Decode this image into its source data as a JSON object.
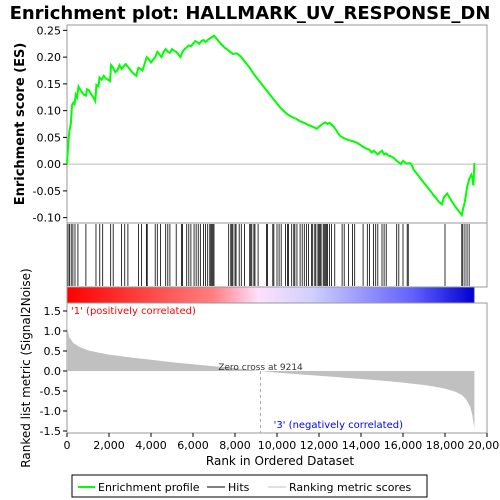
{
  "chart_data": {
    "type": "line",
    "title": "Enrichment plot: HALLMARK_UV_RESPONSE_DN",
    "es_panel": {
      "ylabel": "Enrichment score (ES)",
      "ylim": [
        -0.11,
        0.26
      ],
      "yticks": [
        -0.1,
        -0.05,
        0.0,
        0.05,
        0.1,
        0.15,
        0.2,
        0.25
      ],
      "ytick_labels": [
        "-0.10",
        "-0.05",
        "0.00",
        "0.05",
        "0.10",
        "0.15",
        "0.20",
        "0.25"
      ],
      "line_color": "#00ff00",
      "points": [
        [
          0,
          0.0
        ],
        [
          60,
          0.04
        ],
        [
          120,
          0.063
        ],
        [
          180,
          0.075
        ],
        [
          240,
          0.11
        ],
        [
          300,
          0.115
        ],
        [
          360,
          0.112
        ],
        [
          420,
          0.13
        ],
        [
          480,
          0.125
        ],
        [
          550,
          0.145
        ],
        [
          620,
          0.14
        ],
        [
          700,
          0.135
        ],
        [
          800,
          0.13
        ],
        [
          900,
          0.128
        ],
        [
          950,
          0.14
        ],
        [
          1050,
          0.138
        ],
        [
          1150,
          0.13
        ],
        [
          1250,
          0.125
        ],
        [
          1350,
          0.118
        ],
        [
          1400,
          0.148
        ],
        [
          1500,
          0.145
        ],
        [
          1550,
          0.162
        ],
        [
          1650,
          0.158
        ],
        [
          1750,
          0.165
        ],
        [
          1850,
          0.16
        ],
        [
          1950,
          0.158
        ],
        [
          2050,
          0.155
        ],
        [
          2100,
          0.185
        ],
        [
          2200,
          0.18
        ],
        [
          2300,
          0.172
        ],
        [
          2400,
          0.175
        ],
        [
          2500,
          0.185
        ],
        [
          2600,
          0.178
        ],
        [
          2700,
          0.183
        ],
        [
          2800,
          0.187
        ],
        [
          2900,
          0.182
        ],
        [
          3000,
          0.177
        ],
        [
          3100,
          0.172
        ],
        [
          3200,
          0.168
        ],
        [
          3300,
          0.165
        ],
        [
          3400,
          0.18
        ],
        [
          3500,
          0.178
        ],
        [
          3600,
          0.175
        ],
        [
          3700,
          0.188
        ],
        [
          3800,
          0.2
        ],
        [
          3900,
          0.196
        ],
        [
          4000,
          0.19
        ],
        [
          4100,
          0.195
        ],
        [
          4200,
          0.2
        ],
        [
          4300,
          0.21
        ],
        [
          4400,
          0.205
        ],
        [
          4500,
          0.2
        ],
        [
          4600,
          0.21
        ],
        [
          4700,
          0.215
        ],
        [
          4800,
          0.21
        ],
        [
          4900,
          0.208
        ],
        [
          5000,
          0.215
        ],
        [
          5100,
          0.212
        ],
        [
          5200,
          0.21
        ],
        [
          5300,
          0.205
        ],
        [
          5400,
          0.2
        ],
        [
          5500,
          0.21
        ],
        [
          5600,
          0.215
        ],
        [
          5700,
          0.218
        ],
        [
          5800,
          0.222
        ],
        [
          5900,
          0.22
        ],
        [
          6000,
          0.225
        ],
        [
          6100,
          0.23
        ],
        [
          6200,
          0.228
        ],
        [
          6300,
          0.225
        ],
        [
          6400,
          0.23
        ],
        [
          6500,
          0.232
        ],
        [
          6600,
          0.228
        ],
        [
          6700,
          0.232
        ],
        [
          6800,
          0.235
        ],
        [
          6900,
          0.237
        ],
        [
          7000,
          0.24
        ],
        [
          7050,
          0.238
        ],
        [
          7150,
          0.233
        ],
        [
          7300,
          0.226
        ],
        [
          7500,
          0.218
        ],
        [
          7700,
          0.212
        ],
        [
          7900,
          0.206
        ],
        [
          8100,
          0.207
        ],
        [
          8300,
          0.2
        ],
        [
          8500,
          0.19
        ],
        [
          8700,
          0.18
        ],
        [
          8900,
          0.168
        ],
        [
          9100,
          0.158
        ],
        [
          9300,
          0.148
        ],
        [
          9500,
          0.138
        ],
        [
          9700,
          0.128
        ],
        [
          9900,
          0.118
        ],
        [
          10100,
          0.108
        ],
        [
          10300,
          0.1
        ],
        [
          10500,
          0.093
        ],
        [
          10700,
          0.088
        ],
        [
          10900,
          0.085
        ],
        [
          11100,
          0.08
        ],
        [
          11300,
          0.077
        ],
        [
          11500,
          0.073
        ],
        [
          11700,
          0.07
        ],
        [
          11900,
          0.066
        ],
        [
          12000,
          0.07
        ],
        [
          12100,
          0.073
        ],
        [
          12200,
          0.076
        ],
        [
          12300,
          0.078
        ],
        [
          12400,
          0.075
        ],
        [
          12500,
          0.077
        ],
        [
          12600,
          0.074
        ],
        [
          12700,
          0.07
        ],
        [
          12800,
          0.065
        ],
        [
          12900,
          0.058
        ],
        [
          13000,
          0.053
        ],
        [
          13200,
          0.048
        ],
        [
          13400,
          0.045
        ],
        [
          13600,
          0.043
        ],
        [
          13800,
          0.04
        ],
        [
          14000,
          0.035
        ],
        [
          14200,
          0.03
        ],
        [
          14400,
          0.027
        ],
        [
          14500,
          0.022
        ],
        [
          14600,
          0.025
        ],
        [
          14700,
          0.022
        ],
        [
          14800,
          0.018
        ],
        [
          14900,
          0.022
        ],
        [
          15000,
          0.025
        ],
        [
          15100,
          0.018
        ],
        [
          15200,
          0.02
        ],
        [
          15300,
          0.016
        ],
        [
          15400,
          0.015
        ],
        [
          15500,
          0.013
        ],
        [
          15600,
          0.01
        ],
        [
          15700,
          0.006
        ],
        [
          15800,
          0.003
        ],
        [
          15900,
          0.0
        ],
        [
          16000,
          0.006
        ],
        [
          16100,
          0.003
        ],
        [
          16200,
          0.001
        ],
        [
          16300,
          0.002
        ],
        [
          16400,
          0.0
        ],
        [
          16500,
          -0.01
        ],
        [
          16700,
          -0.02
        ],
        [
          16900,
          -0.03
        ],
        [
          17100,
          -0.04
        ],
        [
          17300,
          -0.05
        ],
        [
          17500,
          -0.06
        ],
        [
          17700,
          -0.07
        ],
        [
          17850,
          -0.075
        ],
        [
          17950,
          -0.062
        ],
        [
          18100,
          -0.055
        ],
        [
          18300,
          -0.068
        ],
        [
          18500,
          -0.08
        ],
        [
          18700,
          -0.09
        ],
        [
          18800,
          -0.095
        ],
        [
          18850,
          -0.085
        ],
        [
          18950,
          -0.07
        ],
        [
          19050,
          -0.043
        ],
        [
          19150,
          -0.028
        ],
        [
          19250,
          -0.02
        ],
        [
          19300,
          -0.025
        ],
        [
          19350,
          -0.04
        ],
        [
          19400,
          0.002
        ]
      ]
    },
    "hits_panel": {
      "hit_positions": [
        50,
        120,
        200,
        280,
        380,
        520,
        900,
        1380,
        1560,
        1700,
        2080,
        2200,
        2600,
        2750,
        2900,
        3400,
        3550,
        3780,
        3820,
        4200,
        4300,
        4450,
        4700,
        4800,
        4900,
        5200,
        5450,
        5500,
        5700,
        5800,
        5900,
        6050,
        6150,
        6250,
        6350,
        6500,
        6600,
        6700,
        6800,
        6850,
        6900,
        6950,
        7000,
        7700,
        7800,
        7850,
        7900,
        8000,
        8050,
        8200,
        8300,
        8450,
        8700,
        8750,
        8800,
        8900,
        8950,
        9100,
        9500,
        9550,
        9800,
        9850,
        10000,
        10100,
        10200,
        10400,
        10500,
        10550,
        10700,
        10800,
        10850,
        10950,
        11100,
        11200,
        11300,
        11400,
        11500,
        11650,
        11700,
        11800,
        11850,
        11950,
        12000,
        12050,
        12100,
        12200,
        12250,
        12300,
        12350,
        12400,
        12500,
        12600,
        12750,
        13100,
        13200,
        13400,
        13600,
        13700,
        14100,
        14300,
        14400,
        14600,
        14700,
        14800,
        15000,
        15100,
        15200,
        15700,
        15800,
        16000,
        16200,
        16250,
        18000,
        18800,
        18850,
        18950,
        19050,
        19150
      ]
    },
    "metric_panel": {
      "ylabel": "Ranked list metric (Signal2Noise)",
      "xlabel": "Rank in Ordered Dataset",
      "xlim": [
        0,
        20000
      ],
      "xticks": [
        0,
        2000,
        4000,
        6000,
        8000,
        10000,
        12000,
        14000,
        16000,
        18000,
        20000
      ],
      "xtick_labels": [
        "0",
        "2,000",
        "4,000",
        "6,000",
        "8,000",
        "10,000",
        "12,000",
        "14,000",
        "16,000",
        "18,000",
        "20,000"
      ],
      "ylim": [
        -1.55,
        1.7
      ],
      "yticks": [
        -1.5,
        -1.0,
        -0.5,
        0.0,
        0.5,
        1.0,
        1.5
      ],
      "ytick_labels": [
        "-1.5",
        "-1.0",
        "-0.5",
        "0.0",
        "0.5",
        "1.0",
        "1.5"
      ],
      "zero_cross": 9214,
      "zero_cross_label": "Zero cross at 9214",
      "positive_label": "'1' (positively correlated)",
      "negative_label": "'3' (negatively correlated)",
      "positive_color": "#ff0000",
      "negative_color": "#0000ff",
      "metric_curve": [
        [
          0,
          1.6
        ],
        [
          30,
          1.05
        ],
        [
          100,
          0.85
        ],
        [
          300,
          0.7
        ],
        [
          600,
          0.6
        ],
        [
          1000,
          0.52
        ],
        [
          1500,
          0.46
        ],
        [
          2000,
          0.41
        ],
        [
          3000,
          0.34
        ],
        [
          4000,
          0.28
        ],
        [
          5000,
          0.22
        ],
        [
          6000,
          0.17
        ],
        [
          7000,
          0.12
        ],
        [
          8000,
          0.07
        ],
        [
          9214,
          0.0
        ],
        [
          10000,
          -0.04
        ],
        [
          11000,
          -0.08
        ],
        [
          12000,
          -0.12
        ],
        [
          13000,
          -0.16
        ],
        [
          14000,
          -0.2
        ],
        [
          15000,
          -0.24
        ],
        [
          16000,
          -0.29
        ],
        [
          17000,
          -0.35
        ],
        [
          17500,
          -0.39
        ],
        [
          18000,
          -0.44
        ],
        [
          18500,
          -0.52
        ],
        [
          18800,
          -0.6
        ],
        [
          19000,
          -0.7
        ],
        [
          19200,
          -0.9
        ],
        [
          19300,
          -1.1
        ],
        [
          19400,
          -1.45
        ]
      ]
    },
    "legend": {
      "items": [
        {
          "label": "Enrichment profile",
          "color": "#00ff00",
          "style": "line"
        },
        {
          "label": "Hits",
          "color": "#000000",
          "style": "line"
        },
        {
          "label": "Ranking metric scores",
          "color": "#c0c0c0",
          "style": "line"
        }
      ]
    }
  }
}
